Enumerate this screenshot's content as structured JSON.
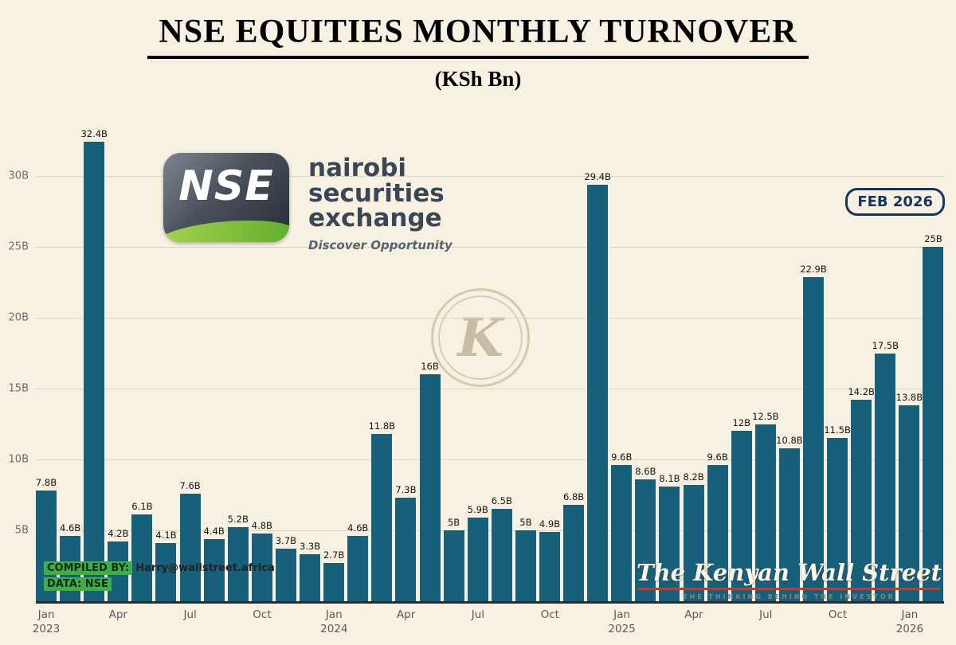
{
  "colors": {
    "background": "#f8f1e2",
    "bar": "#16607b",
    "highlight_green": "#3fae49",
    "callout_navy": "#16355c",
    "rule_red": "#c23b2e"
  },
  "nse_logo": {
    "acronym": "NSE",
    "line1": "nairobi",
    "line2": "securities",
    "line3": "exchange",
    "tagline": "Discover Opportunity"
  },
  "watermark": {
    "letter": "K"
  },
  "callout": {
    "text": "FEB 2026"
  },
  "footer": {
    "compiled_label": "COMPILED BY:",
    "compiled_value": "Harry@wallstreet.africa",
    "data_label": "DATA: NSE"
  },
  "kws": {
    "name": "The Kenyan Wall Street",
    "tagline": "THE THINKING BEHIND THE INVESTOR"
  },
  "chart_data": {
    "type": "bar",
    "title": "NSE EQUITIES MONTHLY TURNOVER",
    "subtitle": "(KSh Bn)",
    "unit": "KSh Bn",
    "ylim": [
      0,
      34
    ],
    "grid": "horizontal",
    "ytick_values": [
      5,
      10,
      15,
      20,
      25,
      30
    ],
    "ytick_labels": [
      "5B",
      "10B",
      "15B",
      "20B",
      "25B",
      "30B"
    ],
    "months": [
      "Jan 2023",
      "Feb 2023",
      "Mar 2023",
      "Apr 2023",
      "May 2023",
      "Jun 2023",
      "Jul 2023",
      "Aug 2023",
      "Sep 2023",
      "Oct 2023",
      "Nov 2023",
      "Dec 2023",
      "Jan 2024",
      "Feb 2024",
      "Mar 2024",
      "Apr 2024",
      "May 2024",
      "Jun 2024",
      "Jul 2024",
      "Aug 2024",
      "Sep 2024",
      "Oct 2024",
      "Nov 2024",
      "Dec 2024",
      "Jan 2025",
      "Feb 2025",
      "Mar 2025",
      "Apr 2025",
      "May 2025",
      "Jun 2025",
      "Jul 2025",
      "Aug 2025",
      "Sep 2025",
      "Oct 2025",
      "Nov 2025",
      "Dec 2025",
      "Jan 2026",
      "Feb 2026"
    ],
    "values": [
      7.8,
      4.6,
      32.4,
      4.2,
      6.1,
      4.1,
      7.6,
      4.4,
      5.2,
      4.8,
      3.7,
      3.3,
      2.7,
      4.6,
      11.8,
      7.3,
      16,
      5,
      5.9,
      6.5,
      5,
      4.9,
      6.8,
      29.4,
      9.6,
      8.6,
      8.1,
      8.2,
      9.6,
      12,
      12.5,
      10.8,
      22.9,
      11.5,
      14.2,
      17.5,
      13.8,
      25
    ],
    "labels": [
      "7.8B",
      "4.6B",
      "32.4B",
      "4.2B",
      "6.1B",
      "4.1B",
      "7.6B",
      "4.4B",
      "5.2B",
      "4.8B",
      "3.7B",
      "3.3B",
      "2.7B",
      "4.6B",
      "11.8B",
      "7.3B",
      "16B",
      "5B",
      "5.9B",
      "6.5B",
      "5B",
      "4.9B",
      "6.8B",
      "29.4B",
      "9.6B",
      "8.6B",
      "8.1B",
      "8.2B",
      "9.6B",
      "12B",
      "12.5B",
      "10.8B",
      "22.9B",
      "11.5B",
      "14.2B",
      "17.5B",
      "13.8B",
      "25B"
    ],
    "xticks": [
      {
        "index": 0,
        "lines": [
          "Jan",
          "2023"
        ]
      },
      {
        "index": 3,
        "lines": [
          "Apr"
        ]
      },
      {
        "index": 6,
        "lines": [
          "Jul"
        ]
      },
      {
        "index": 9,
        "lines": [
          "Oct"
        ]
      },
      {
        "index": 12,
        "lines": [
          "Jan",
          "2024"
        ]
      },
      {
        "index": 15,
        "lines": [
          "Apr"
        ]
      },
      {
        "index": 18,
        "lines": [
          "Jul"
        ]
      },
      {
        "index": 21,
        "lines": [
          "Oct"
        ]
      },
      {
        "index": 24,
        "lines": [
          "Jan",
          "2025"
        ]
      },
      {
        "index": 27,
        "lines": [
          "Apr"
        ]
      },
      {
        "index": 30,
        "lines": [
          "Jul"
        ]
      },
      {
        "index": 33,
        "lines": [
          "Oct"
        ]
      },
      {
        "index": 36,
        "lines": [
          "Jan",
          "2026"
        ]
      }
    ]
  }
}
